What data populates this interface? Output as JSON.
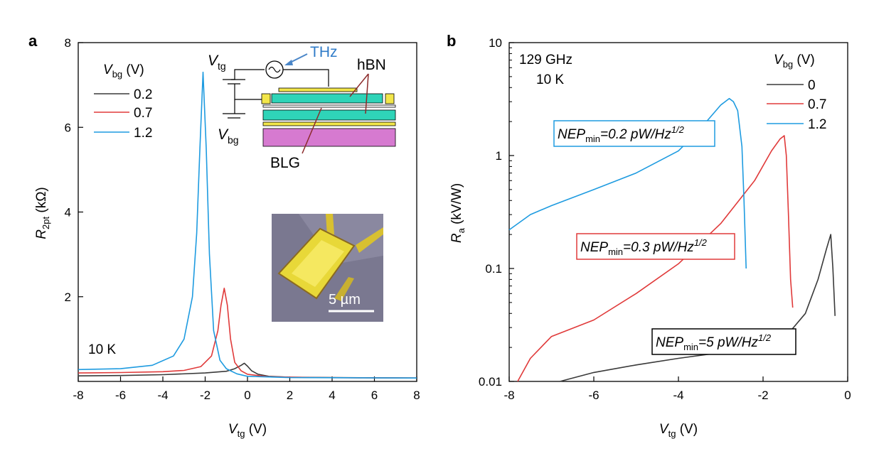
{
  "figure": {
    "panel_a_label": "a",
    "panel_b_label": "b"
  },
  "colors": {
    "c0": "#3a3a3a",
    "c1": "#e03a3a",
    "c2": "#1e9be0"
  },
  "chart_data": [
    {
      "type": "line",
      "panel": "a",
      "xlabel_main": "V",
      "xlabel_sub": "tg",
      "xlabel_unit": " (V)",
      "ylabel_main": "R",
      "ylabel_sub": "2pt",
      "ylabel_unit": " (kΩ)",
      "xlim": [
        -8,
        8
      ],
      "ylim": [
        0,
        8
      ],
      "xticks": [
        "-8",
        "-6",
        "-4",
        "-2",
        "0",
        "2",
        "4",
        "6",
        "8"
      ],
      "yticks": [
        "2",
        "4",
        "6",
        "8"
      ],
      "legend_title_main": "V",
      "legend_title_sub": "bg",
      "legend_title_unit": " (V)",
      "temperature": "10 K",
      "series": [
        {
          "name": "0.2",
          "color": "#3a3a3a",
          "x": [
            -8,
            -6,
            -4,
            -2,
            -1,
            -0.6,
            -0.3,
            -0.15,
            0,
            0.2,
            0.5,
            1,
            2,
            4,
            8
          ],
          "y": [
            0.13,
            0.14,
            0.16,
            0.2,
            0.24,
            0.3,
            0.38,
            0.43,
            0.36,
            0.25,
            0.17,
            0.12,
            0.1,
            0.09,
            0.08
          ]
        },
        {
          "name": "0.7",
          "color": "#e03a3a",
          "x": [
            -8,
            -6,
            -4,
            -3,
            -2.2,
            -1.7,
            -1.4,
            -1.25,
            -1.1,
            -0.95,
            -0.8,
            -0.6,
            -0.3,
            0,
            1,
            3,
            8
          ],
          "y": [
            0.2,
            0.21,
            0.23,
            0.26,
            0.35,
            0.6,
            1.2,
            1.8,
            2.2,
            1.8,
            1.0,
            0.45,
            0.25,
            0.17,
            0.11,
            0.09,
            0.08
          ]
        },
        {
          "name": "1.2",
          "color": "#1e9be0",
          "x": [
            -8,
            -6,
            -4.5,
            -3.5,
            -3,
            -2.6,
            -2.4,
            -2.25,
            -2.1,
            -1.95,
            -1.8,
            -1.6,
            -1.3,
            -1,
            -0.5,
            0,
            2,
            8
          ],
          "y": [
            0.28,
            0.3,
            0.38,
            0.6,
            1.0,
            2.0,
            3.5,
            5.5,
            7.3,
            5.5,
            3.0,
            1.2,
            0.5,
            0.3,
            0.18,
            0.12,
            0.09,
            0.08
          ]
        }
      ],
      "inset_schematic": {
        "vtg_main": "V",
        "vtg_sub": "tg",
        "vbg_main": "V",
        "vbg_sub": "bg",
        "thz": "THz",
        "hbn": "hBN",
        "blg": "BLG"
      },
      "inset_image": {
        "scale_bar": "5 µm"
      }
    },
    {
      "type": "line",
      "panel": "b",
      "xlabel_main": "V",
      "xlabel_sub": "tg",
      "xlabel_unit": " (V)",
      "ylabel_main": "R",
      "ylabel_sub": "a",
      "ylabel_unit": " (kV/W)",
      "xlim": [
        -8,
        0
      ],
      "ylim": [
        0.01,
        10
      ],
      "yscale": "log",
      "xticks": [
        "-8",
        "-6",
        "-4",
        "-2",
        "0"
      ],
      "yticks": [
        "0.01",
        "0.1",
        "1",
        "10"
      ],
      "freq": "129 GHz",
      "temperature": "10 K",
      "legend_title_main": "V",
      "legend_title_sub": "bg",
      "legend_title_unit": " (V)",
      "series": [
        {
          "name": "0",
          "color": "#3a3a3a",
          "x": [
            -6.8,
            -6,
            -5,
            -4,
            -3,
            -2,
            -1.5,
            -1,
            -0.7,
            -0.5,
            -0.4,
            -0.35,
            -0.3
          ],
          "y": [
            0.01,
            0.012,
            0.014,
            0.016,
            0.018,
            0.021,
            0.024,
            0.04,
            0.08,
            0.15,
            0.2,
            0.1,
            0.038
          ]
        },
        {
          "name": "0.7",
          "color": "#e03a3a",
          "x": [
            -7.8,
            -7.5,
            -7,
            -6,
            -5,
            -4,
            -3,
            -2.2,
            -1.8,
            -1.6,
            -1.5,
            -1.45,
            -1.4,
            -1.35,
            -1.3
          ],
          "y": [
            0.01,
            0.016,
            0.025,
            0.035,
            0.06,
            0.11,
            0.25,
            0.6,
            1.1,
            1.4,
            1.5,
            1.0,
            0.3,
            0.08,
            0.045
          ]
        },
        {
          "name": "1.2",
          "color": "#1e9be0",
          "x": [
            -8,
            -7.5,
            -7,
            -6,
            -5,
            -4,
            -3.5,
            -3,
            -2.8,
            -2.7,
            -2.6,
            -2.5,
            -2.45,
            -2.4
          ],
          "y": [
            0.22,
            0.3,
            0.36,
            0.5,
            0.7,
            1.1,
            1.7,
            2.8,
            3.2,
            3.0,
            2.5,
            1.2,
            0.4,
            0.1
          ]
        }
      ],
      "nep_boxes": [
        {
          "series": "1.2",
          "pre": "NEP",
          "sub": "min",
          "val": "=0.2 pW/Hz",
          "exp": "1/2",
          "color": "#1e9be0"
        },
        {
          "series": "0.7",
          "pre": "NEP",
          "sub": "min",
          "val": "=0.3 pW/Hz",
          "exp": "1/2",
          "color": "#e03a3a"
        },
        {
          "series": "0",
          "pre": "NEP",
          "sub": "min",
          "val": "=5 pW/Hz",
          "exp": "1/2",
          "color": "#000000"
        }
      ]
    }
  ]
}
